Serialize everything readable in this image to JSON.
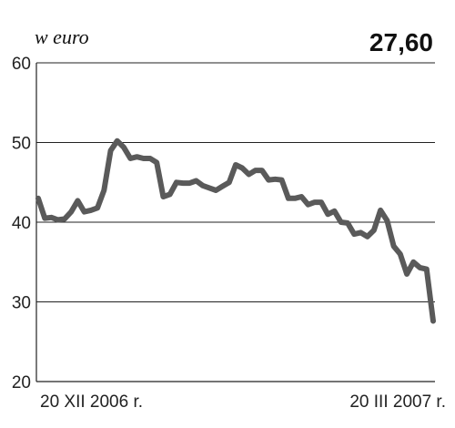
{
  "chart_data": {
    "type": "line",
    "unit_label": "w euro",
    "last_value_label": "27,60",
    "ylim": [
      20,
      60
    ],
    "yticks": [
      20,
      30,
      40,
      50,
      60
    ],
    "grid": true,
    "x_start_label": "20 XII 2006 r.",
    "x_end_label": "20 III 2007 r.",
    "series": [
      {
        "values": [
          43,
          40.5,
          40.6,
          40.3,
          40.4,
          41.3,
          42.7,
          41.3,
          41.5,
          41.8,
          44,
          49,
          50.2,
          49.4,
          48,
          48.2,
          48,
          48,
          47.5,
          43.2,
          43.5,
          45,
          44.9,
          44.9,
          45.2,
          44.6,
          44.3,
          44,
          44.5,
          45,
          47.2,
          46.8,
          46,
          46.5,
          46.5,
          45.3,
          45.4,
          45.3,
          43,
          43,
          43.2,
          42.2,
          42.5,
          42.5,
          41,
          41.4,
          40,
          39.9,
          38.5,
          38.7,
          38.2,
          39,
          41.5,
          40.2,
          37,
          36,
          33.5,
          35,
          34.3,
          34.1,
          27.6
        ]
      }
    ]
  }
}
